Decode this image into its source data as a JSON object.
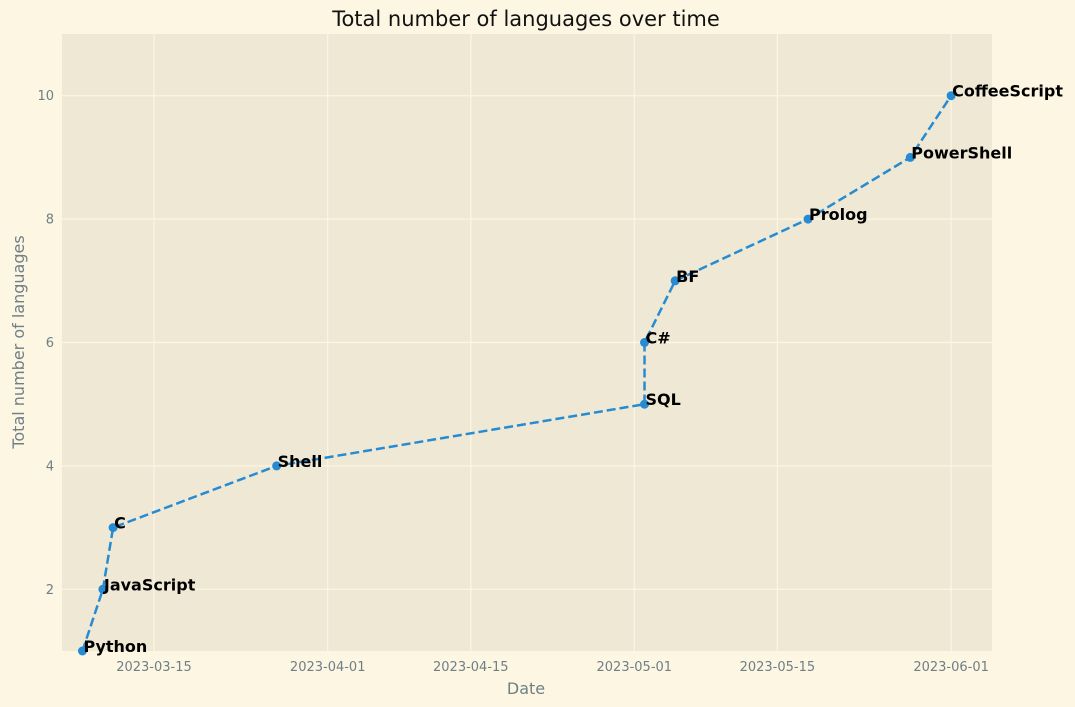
{
  "chart_data": {
    "type": "line",
    "title": "Total number of languages over time",
    "xlabel": "Date",
    "ylabel": "Total number of languages",
    "xlim": [
      "2023-03-06",
      "2023-06-05"
    ],
    "ylim": [
      1,
      11
    ],
    "x_ticks": [
      "2023-03-15",
      "2023-04-01",
      "2023-04-15",
      "2023-05-01",
      "2023-05-15",
      "2023-06-01"
    ],
    "y_ticks": [
      2,
      4,
      6,
      8,
      10
    ],
    "grid": true,
    "line_style": "dashed",
    "series": [
      {
        "color": "#268bd2",
        "points": [
          {
            "x": "2023-03-08",
            "y": 1,
            "label": "Python"
          },
          {
            "x": "2023-03-10",
            "y": 2,
            "label": "JavaScript"
          },
          {
            "x": "2023-03-11",
            "y": 3,
            "label": "C"
          },
          {
            "x": "2023-03-27",
            "y": 4,
            "label": "Shell"
          },
          {
            "x": "2023-05-02",
            "y": 5,
            "label": "SQL"
          },
          {
            "x": "2023-05-02",
            "y": 6,
            "label": "C#"
          },
          {
            "x": "2023-05-05",
            "y": 7,
            "label": "BF"
          },
          {
            "x": "2023-05-18",
            "y": 8,
            "label": "Prolog"
          },
          {
            "x": "2023-05-28",
            "y": 9,
            "label": "PowerShell"
          },
          {
            "x": "2023-06-01",
            "y": 10,
            "label": "CoffeeScript"
          }
        ]
      }
    ]
  },
  "colors": {
    "figure_background": "#fdf6e3",
    "plot_background": "#eee8d5",
    "grid": "#fdf6e3",
    "text": "#6f7f86"
  }
}
